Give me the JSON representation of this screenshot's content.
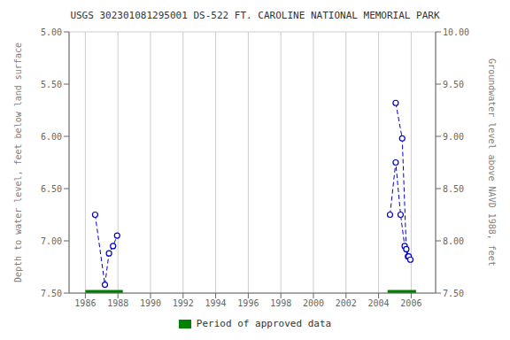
{
  "chart_data": {
    "type": "line",
    "title": "USGS 302301081295001 DS-522  FT. CAROLINE NATIONAL MEMORIAL PARK",
    "ylabel": "Depth to water level, feet below land surface",
    "y2label": "Groundwater level above NAVD 1988, feet",
    "xlim": [
      1985.0,
      2007.5
    ],
    "xticks": [
      1986,
      1988,
      1990,
      1992,
      1994,
      1996,
      1998,
      2000,
      2002,
      2004,
      2006
    ],
    "ylim": [
      7.5,
      5.0
    ],
    "yticks": [
      {
        "value": 5.0,
        "label": "5.00"
      },
      {
        "value": 5.5,
        "label": "5.50"
      },
      {
        "value": 6.0,
        "label": "6.00"
      },
      {
        "value": 6.5,
        "label": "6.50"
      },
      {
        "value": 7.0,
        "label": "7.00"
      },
      {
        "value": 7.5,
        "label": "7.50"
      }
    ],
    "y2lim": [
      7.5,
      10.0
    ],
    "y2ticks": [
      {
        "value": 7.5,
        "label": "7.50"
      },
      {
        "value": 8.0,
        "label": "8.00"
      },
      {
        "value": 8.5,
        "label": "8.50"
      },
      {
        "value": 9.0,
        "label": "9.00"
      },
      {
        "value": 9.5,
        "label": "9.50"
      },
      {
        "value": 10.0,
        "label": "10.00"
      }
    ],
    "grid": true,
    "legend": "bottom",
    "series": [
      {
        "x": [
          1986.6,
          1987.2,
          1987.45,
          1987.7,
          1987.95
        ],
        "values": [
          6.75,
          7.42,
          7.12,
          7.05,
          6.95
        ],
        "color": "#0000CC",
        "marker": "circle",
        "line_style": "dashed"
      },
      {
        "x": [
          2004.7,
          2005.05,
          2005.35,
          2005.6,
          2005.8
        ],
        "values": [
          6.75,
          6.25,
          6.75,
          7.05,
          7.15
        ],
        "color": "#0000CC",
        "marker": "circle",
        "line_style": "dashed"
      },
      {
        "x": [
          2005.05,
          2005.45,
          2005.7,
          2005.85,
          2005.95
        ],
        "values": [
          5.68,
          6.02,
          7.08,
          7.15,
          7.18
        ],
        "color": "#0000CC",
        "marker": "circle",
        "line_style": "dashed"
      }
    ],
    "approved_periods": {
      "name": "Period of approved data",
      "color": "#008000",
      "ranges": [
        [
          1986.0,
          1988.3
        ],
        [
          2004.55,
          2006.3
        ]
      ]
    }
  }
}
